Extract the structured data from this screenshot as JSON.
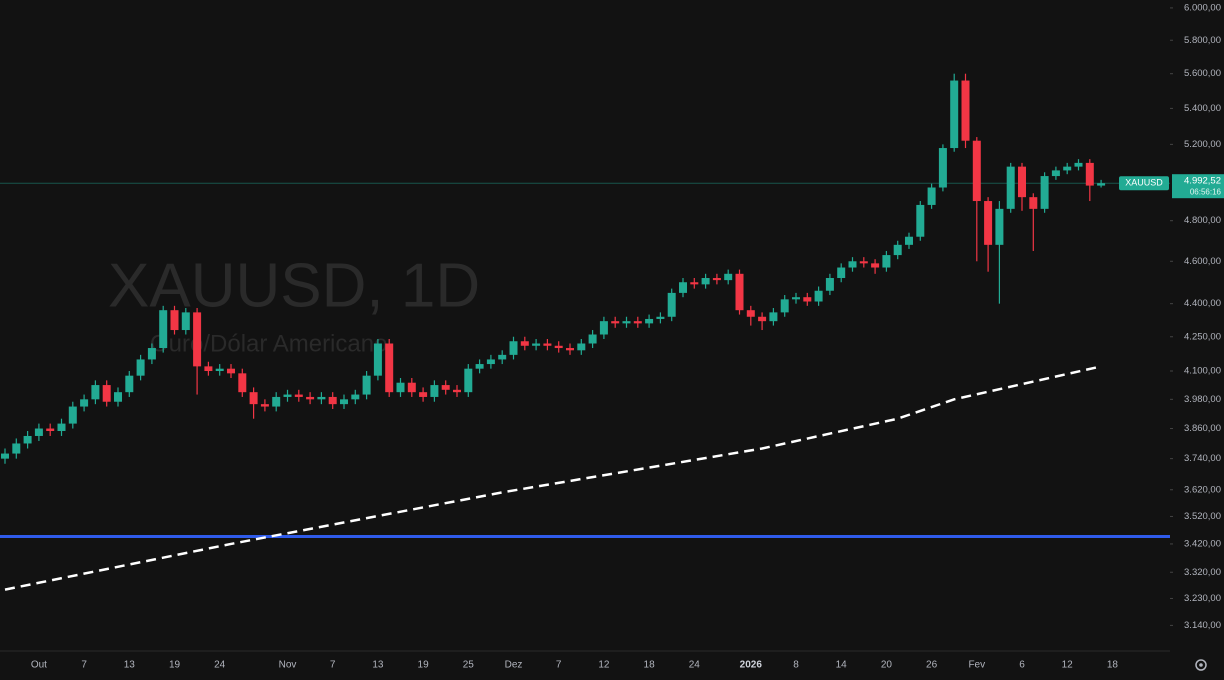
{
  "chart_data": {
    "type": "candlestick",
    "watermark": "XAUUSD, 1D",
    "watermark_subtitle": "Ouro/Dólar Americano",
    "log_scale": true,
    "up_color": "#22ab94",
    "down_color": "#f23645",
    "categories": [
      null,
      null,
      null,
      "Out",
      null,
      null,
      null,
      "7",
      null,
      null,
      null,
      "13",
      null,
      null,
      null,
      "19",
      null,
      null,
      null,
      "24",
      null,
      null,
      null,
      null,
      null,
      "Nov",
      null,
      null,
      null,
      "7",
      null,
      null,
      null,
      "13",
      null,
      null,
      null,
      "19",
      null,
      null,
      null,
      "25",
      null,
      null,
      null,
      "Dez",
      null,
      null,
      null,
      "7",
      null,
      null,
      null,
      "12",
      null,
      null,
      null,
      "18",
      null,
      null,
      null,
      "24",
      null,
      null,
      null,
      null,
      "2026",
      null,
      null,
      null,
      "8",
      null,
      null,
      null,
      "14",
      null,
      null,
      null,
      "20",
      null,
      null,
      null,
      "26",
      null,
      null,
      null,
      "Fev",
      null,
      null,
      null,
      "6",
      null,
      null,
      null,
      "12",
      null,
      null,
      null,
      "18",
      null
    ],
    "open": [
      3740,
      3760,
      3800,
      3830,
      3860,
      3850,
      3880,
      3950,
      3980,
      4040,
      3970,
      4010,
      4080,
      4150,
      4200,
      4370,
      4280,
      4360,
      4120,
      4100,
      4110,
      4090,
      4010,
      3960,
      3950,
      3990,
      4000,
      3990,
      3980,
      3990,
      3960,
      3980,
      4000,
      4080,
      4220,
      4010,
      4050,
      4010,
      3990,
      4040,
      4020,
      4010,
      4110,
      4130,
      4150,
      4170,
      4230,
      4210,
      4220,
      4210,
      4200,
      4190,
      4220,
      4260,
      4320,
      4310,
      4320,
      4310,
      4330,
      4340,
      4450,
      4500,
      4490,
      4520,
      4510,
      4540,
      4370,
      4340,
      4320,
      4360,
      4420,
      4430,
      4410,
      4460,
      4520,
      4570,
      4600,
      4590,
      4570,
      4630,
      4680,
      4720,
      4880,
      4970,
      5180,
      5560,
      5220,
      4900,
      4680,
      4860,
      5080,
      4920,
      4860,
      5030,
      5060,
      5080,
      5100,
      4980,
      null,
      null
    ],
    "high": [
      3780,
      3820,
      3850,
      3880,
      3880,
      3900,
      3970,
      4000,
      4060,
      4060,
      4030,
      4100,
      4170,
      4220,
      4390,
      4390,
      4380,
      4380,
      4140,
      4130,
      4130,
      4110,
      4030,
      3980,
      4010,
      4020,
      4020,
      4010,
      4010,
      4010,
      4000,
      4020,
      4100,
      4240,
      4240,
      4070,
      4070,
      4030,
      4060,
      4060,
      4040,
      4130,
      4150,
      4170,
      4190,
      4250,
      4250,
      4240,
      4240,
      4230,
      4220,
      4240,
      4280,
      4340,
      4340,
      4340,
      4340,
      4350,
      4360,
      4470,
      4520,
      4520,
      4540,
      4540,
      4560,
      4560,
      4390,
      4360,
      4380,
      4440,
      4450,
      4450,
      4480,
      4540,
      4590,
      4620,
      4620,
      4610,
      4650,
      4700,
      4740,
      4900,
      4990,
      5200,
      5600,
      5600,
      5240,
      4920,
      4900,
      5100,
      5100,
      4940,
      5050,
      5080,
      5100,
      5120,
      5120,
      5010,
      null,
      null
    ],
    "low": [
      3720,
      3740,
      3780,
      3810,
      3830,
      3830,
      3860,
      3930,
      3960,
      3950,
      3950,
      3990,
      4060,
      4130,
      4180,
      4260,
      4260,
      4000,
      4080,
      4080,
      4070,
      3990,
      3900,
      3930,
      3930,
      3970,
      3970,
      3960,
      3960,
      3940,
      3940,
      3960,
      3980,
      4060,
      3990,
      3990,
      3990,
      3970,
      3970,
      4000,
      3990,
      3990,
      4090,
      4110,
      4130,
      4150,
      4190,
      4190,
      4190,
      4180,
      4170,
      4170,
      4200,
      4240,
      4290,
      4290,
      4290,
      4290,
      4310,
      4320,
      4430,
      4470,
      4470,
      4490,
      4490,
      4350,
      4300,
      4280,
      4300,
      4340,
      4400,
      4390,
      4390,
      4440,
      4500,
      4550,
      4570,
      4540,
      4550,
      4610,
      4660,
      4700,
      4860,
      4950,
      5160,
      5180,
      4600,
      4550,
      4400,
      4840,
      4850,
      4650,
      4840,
      5010,
      5040,
      5060,
      4900,
      4970,
      null,
      null
    ],
    "close": [
      3760,
      3800,
      3830,
      3860,
      3850,
      3880,
      3950,
      3980,
      4040,
      3970,
      4010,
      4080,
      4150,
      4200,
      4370,
      4280,
      4360,
      4120,
      4100,
      4110,
      4090,
      4010,
      3960,
      3950,
      3990,
      4000,
      3990,
      3980,
      3990,
      3960,
      3980,
      4000,
      4080,
      4220,
      4010,
      4050,
      4010,
      3990,
      4040,
      4020,
      4010,
      4110,
      4130,
      4150,
      4170,
      4230,
      4210,
      4220,
      4210,
      4200,
      4190,
      4220,
      4260,
      4320,
      4310,
      4320,
      4310,
      4330,
      4340,
      4450,
      4500,
      4490,
      4520,
      4510,
      4540,
      4370,
      4340,
      4320,
      4360,
      4420,
      4430,
      4410,
      4460,
      4520,
      4570,
      4600,
      4590,
      4570,
      4630,
      4680,
      4720,
      4880,
      4970,
      5180,
      5560,
      5220,
      4900,
      4680,
      4860,
      5080,
      4920,
      4860,
      5030,
      5060,
      5080,
      5100,
      4980,
      4992.52,
      null,
      null
    ],
    "moving_average": {
      "color": "#ffffff",
      "x": [
        0,
        20,
        44,
        67,
        79,
        84,
        97
      ],
      "values": [
        3260,
        3420,
        3610,
        3780,
        3900,
        3980,
        4120
      ]
    },
    "horizontal_line": {
      "color": "#2f5bea",
      "value": 3447
    },
    "price_tag": {
      "symbol": "XAUUSD",
      "value": 4992.52,
      "label": "4.992,52",
      "countdown": "06:56:16",
      "color": "#22ab94"
    },
    "ylim": [
      3060,
      6050
    ],
    "yticks": [
      {
        "value": 6000,
        "label": "6.000,00"
      },
      {
        "value": 5800,
        "label": "5.800,00"
      },
      {
        "value": 5600,
        "label": "5.600,00"
      },
      {
        "value": 5400,
        "label": "5.400,00"
      },
      {
        "value": 5200,
        "label": "5.200,00"
      },
      {
        "value": 4800,
        "label": "4.800,00"
      },
      {
        "value": 4600,
        "label": "4.600,00"
      },
      {
        "value": 4400,
        "label": "4.400,00"
      },
      {
        "value": 4250,
        "label": "4.250,00"
      },
      {
        "value": 4100,
        "label": "4.100,00"
      },
      {
        "value": 3980,
        "label": "3.980,00"
      },
      {
        "value": 3860,
        "label": "3.860,00"
      },
      {
        "value": 3740,
        "label": "3.740,00"
      },
      {
        "value": 3620,
        "label": "3.620,00"
      },
      {
        "value": 3520,
        "label": "3.520,00"
      },
      {
        "value": 3420,
        "label": "3.420,00"
      },
      {
        "value": 3320,
        "label": "3.320,00"
      },
      {
        "value": 3230,
        "label": "3.230,00"
      },
      {
        "value": 3140,
        "label": "3.140,00"
      }
    ]
  }
}
